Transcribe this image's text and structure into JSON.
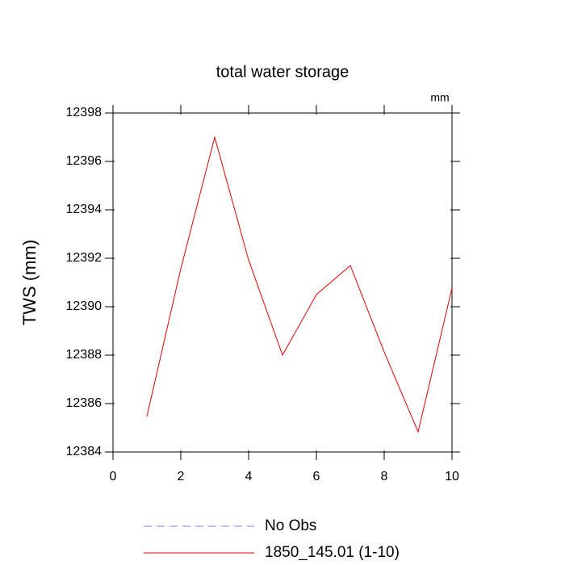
{
  "chart_data": {
    "type": "line",
    "title": "total water storage",
    "y_label": "TWS  (mm)",
    "units_label": "mm",
    "x": [
      1,
      2,
      3,
      4,
      5,
      6,
      7,
      8,
      9,
      10
    ],
    "series": [
      {
        "name": "No Obs",
        "color": "#8080ff",
        "dash": true,
        "values": [
          null,
          null,
          null,
          null,
          null,
          null,
          null,
          null,
          null,
          null
        ]
      },
      {
        "name": "1850_145.01 (1-10)",
        "color": "#e00000",
        "dash": false,
        "values": [
          12385.47,
          12391.57,
          12397.0,
          12391.93,
          12388.0,
          12390.5,
          12391.7,
          12388.13,
          12384.83,
          12390.77
        ]
      }
    ],
    "xlim": [
      0,
      10
    ],
    "xticks": [
      0,
      2,
      4,
      6,
      8,
      10
    ],
    "ylim": [
      12384,
      12398
    ],
    "yticks": [
      12384,
      12386,
      12388,
      12390,
      12392,
      12394,
      12396,
      12398
    ]
  }
}
